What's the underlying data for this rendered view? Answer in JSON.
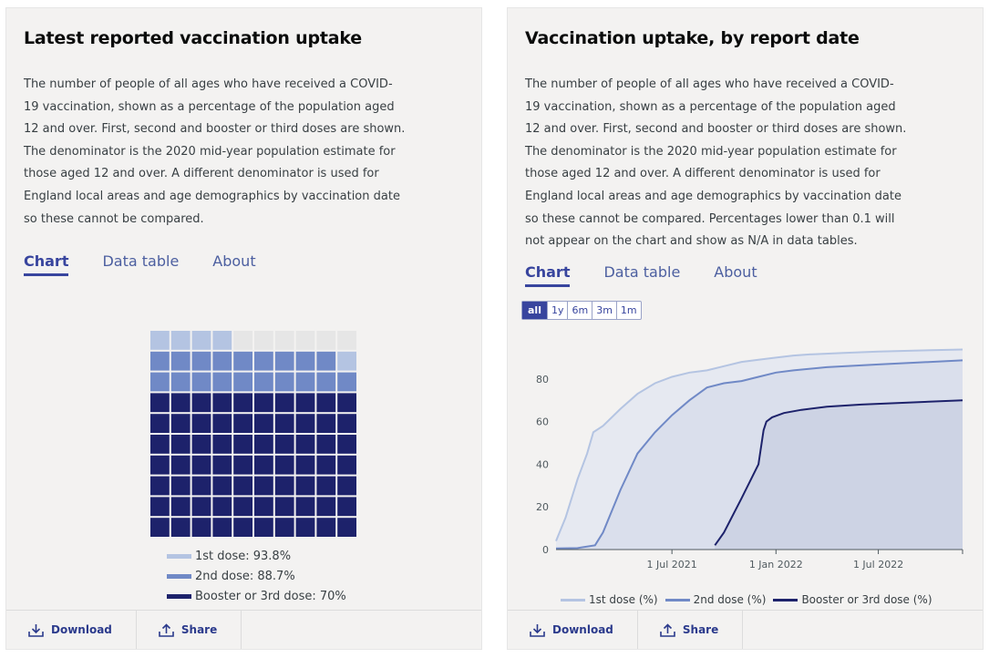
{
  "left_card": {
    "title": "Latest reported vaccination uptake",
    "description": "The number of people of all ages who have received a COVID-19 vaccination, shown as a percentage of the population aged 12 and over. First, second and booster or third doses are shown. The denominator is the 2020 mid-year population estimate for those aged 12 and over. A different denominator is used for England local areas and age demographics by vaccination date so these cannot be compared.",
    "tabs": [
      "Chart",
      "Data table",
      "About"
    ],
    "active_tab": "Chart",
    "footer": {
      "download_label": "Download",
      "share_label": "Share"
    }
  },
  "right_card": {
    "title": "Vaccination uptake, by report date",
    "description": "The number of people of all ages who have received a COVID-19 vaccination, shown as a percentage of the population aged 12 and over. First, second and booster or third doses are shown. The denominator is the 2020 mid-year population estimate for those aged 12 and over. A different denominator is used for England local areas and age demographics by vaccination date so these cannot be compared. Percentages lower than 0.1 will not appear on the chart and show as N/A in data tables.",
    "tabs": [
      "Chart",
      "Data table",
      "About"
    ],
    "active_tab": "Chart",
    "range_buttons": [
      "all",
      "1y",
      "6m",
      "3m",
      "1m"
    ],
    "active_range": "all",
    "footer": {
      "download_label": "Download",
      "share_label": "Share"
    }
  },
  "colors": {
    "dose1": "#b4c4e2",
    "dose2": "#7089c6",
    "dose3": "#1d226b",
    "empty": "#e6e6e6",
    "accent": "#38459e"
  },
  "icons": {
    "download": "download-icon",
    "share": "share-icon"
  },
  "chart_data": [
    {
      "type": "waffle",
      "grid": [
        10,
        10
      ],
      "series": [
        {
          "name": "1st dose",
          "value": 93.8,
          "label": "1st dose: 93.8%"
        },
        {
          "name": "2nd dose",
          "value": 88.7,
          "label": "2nd dose: 88.7%"
        },
        {
          "name": "Booster or 3rd dose",
          "value": 70,
          "label": "Booster or 3rd dose: 70%"
        }
      ]
    },
    {
      "type": "area",
      "ylim": [
        0,
        100
      ],
      "yticks": [
        0,
        20,
        40,
        60,
        80
      ],
      "xlim": [
        "2020-12-08",
        "2022-11-27"
      ],
      "xticks": [
        {
          "date": "2021-07-01",
          "label": "1 Jul 2021"
        },
        {
          "date": "2022-01-01",
          "label": "1 Jan 2022"
        },
        {
          "date": "2022-07-01",
          "label": "1 Jul 2022"
        }
      ],
      "series": [
        {
          "name": "1st dose (%)",
          "points": [
            [
              "2020-12-08",
              4
            ],
            [
              "2020-12-25",
              15
            ],
            [
              "2021-01-15",
              33
            ],
            [
              "2021-02-01",
              45
            ],
            [
              "2021-02-12",
              55
            ],
            [
              "2021-03-01",
              58
            ],
            [
              "2021-04-01",
              66
            ],
            [
              "2021-05-01",
              73
            ],
            [
              "2021-06-01",
              78
            ],
            [
              "2021-07-01",
              81
            ],
            [
              "2021-08-01",
              83
            ],
            [
              "2021-09-01",
              84
            ],
            [
              "2021-10-01",
              86
            ],
            [
              "2021-11-01",
              88
            ],
            [
              "2021-12-01",
              89
            ],
            [
              "2022-01-01",
              90
            ],
            [
              "2022-02-01",
              91
            ],
            [
              "2022-03-01",
              91.5
            ],
            [
              "2022-05-01",
              92.2
            ],
            [
              "2022-07-01",
              92.8
            ],
            [
              "2022-09-01",
              93.3
            ],
            [
              "2022-11-27",
              93.8
            ]
          ]
        },
        {
          "name": "2nd dose (%)",
          "points": [
            [
              "2020-12-08",
              0.5
            ],
            [
              "2021-01-15",
              0.7
            ],
            [
              "2021-02-15",
              2
            ],
            [
              "2021-03-01",
              8
            ],
            [
              "2021-04-01",
              28
            ],
            [
              "2021-05-01",
              45
            ],
            [
              "2021-06-01",
              55
            ],
            [
              "2021-07-01",
              63
            ],
            [
              "2021-08-01",
              70
            ],
            [
              "2021-09-01",
              76
            ],
            [
              "2021-10-01",
              78
            ],
            [
              "2021-11-01",
              79
            ],
            [
              "2021-12-01",
              81
            ],
            [
              "2022-01-01",
              83
            ],
            [
              "2022-02-01",
              84
            ],
            [
              "2022-04-01",
              85.5
            ],
            [
              "2022-07-01",
              86.8
            ],
            [
              "2022-09-01",
              87.6
            ],
            [
              "2022-11-27",
              88.7
            ]
          ]
        },
        {
          "name": "Booster or 3rd dose (%)",
          "points": [
            [
              "2021-09-15",
              2
            ],
            [
              "2021-10-01",
              8
            ],
            [
              "2021-11-01",
              24
            ],
            [
              "2021-12-01",
              40
            ],
            [
              "2021-12-10",
              56
            ],
            [
              "2021-12-15",
              60
            ],
            [
              "2021-12-25",
              62
            ],
            [
              "2022-01-15",
              64
            ],
            [
              "2022-02-15",
              65.5
            ],
            [
              "2022-04-01",
              67
            ],
            [
              "2022-06-01",
              68
            ],
            [
              "2022-09-01",
              69
            ],
            [
              "2022-11-27",
              70
            ]
          ]
        }
      ]
    }
  ]
}
